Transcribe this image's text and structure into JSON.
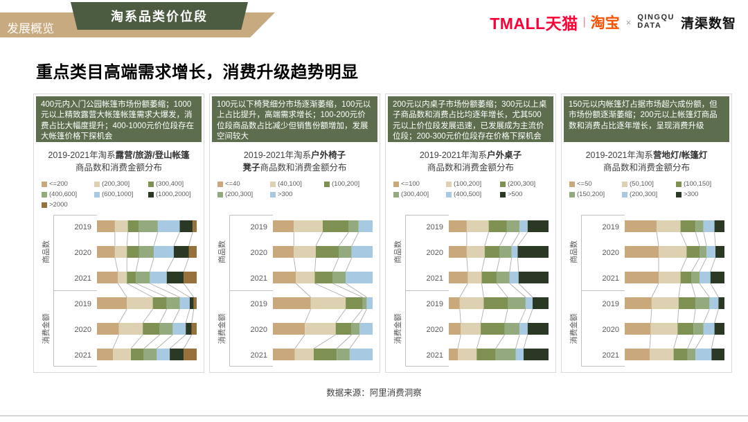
{
  "header": {
    "tab_label": "发展概览",
    "banner_title": "淘系品类价位段",
    "logos": {
      "tmall": "TMALL天猫",
      "separator_bar": "|",
      "taobao": "淘宝",
      "cross": "×",
      "qingqu_line1": "QINGQU",
      "qingqu_line2": "DATA",
      "qingqu_name": "清渠数智"
    }
  },
  "title": "重点类目高端需求增长，消费升级趋势明显",
  "footer": {
    "source": "数据来源：阿里消费洞察"
  },
  "colors": {
    "banner_tan": "#c7aa80",
    "banner_green": "#4c5c41",
    "insight_bg": "#5c6e4e",
    "axis_line": "#bfbfbf",
    "connector": "#adadad",
    "label_text": "#595959"
  },
  "chart_data": [
    {
      "type": "bar",
      "stacked_percent": true,
      "orientation": "horizontal",
      "category": "露营/旅游/登山帐篷",
      "insight": "400元内入门公园帐篷市场份额萎缩；1000元以上精致露营大帐篷帐篷需求大爆发，消费占比大幅度提升；400-1000元价位段存在大帐篷价格下探机会",
      "title_line1_prefix": "2019-2021年淘系",
      "title_line1_bold": "露营/旅游/登山帐篷",
      "title_line2_bold": "",
      "title_line2": "商品数和消费金额分布",
      "legend": [
        "<=200",
        "(200,300]",
        "(300,400]",
        "(400,600]",
        "(600,1000]",
        "(1000,2000]",
        ">2000"
      ],
      "colors": [
        "#c9a87b",
        "#ddd1b2",
        "#7e9152",
        "#93a97e",
        "#a7cae2",
        "#2a3824",
        "#97713b"
      ],
      "groups": [
        "商品数",
        "消费金额"
      ],
      "years": [
        "2019",
        "2020",
        "2021"
      ],
      "rows": [
        {
          "group": "商品数",
          "year": "2019",
          "values": [
            18,
            13,
            11,
            19,
            22,
            13,
            4
          ]
        },
        {
          "group": "商品数",
          "year": "2020",
          "values": [
            18,
            12,
            12,
            15,
            20,
            15,
            8
          ]
        },
        {
          "group": "商品数",
          "year": "2021",
          "values": [
            21,
            9,
            9,
            14,
            17,
            17,
            13
          ]
        },
        {
          "group": "消费金额",
          "year": "2019",
          "values": [
            30,
            26,
            14,
            13,
            10,
            4,
            3
          ]
        },
        {
          "group": "消费金额",
          "year": "2020",
          "values": [
            22,
            24,
            17,
            13,
            13,
            6,
            5
          ]
        },
        {
          "group": "消费金额",
          "year": "2021",
          "values": [
            16,
            18,
            13,
            13,
            13,
            14,
            13
          ]
        }
      ]
    },
    {
      "type": "bar",
      "stacked_percent": true,
      "orientation": "horizontal",
      "category": "户外椅子凳子",
      "insight": "100元以下椅凳细分市场逐渐萎缩，100元以上占比提升，高端需求增长；100-200元价位段商品数占比减少但销售份额增加，发展空间较大",
      "title_line1_prefix": "2019-2021年淘系",
      "title_line1_bold": "户外椅子",
      "title_line2_bold": "凳子",
      "title_line2": "商品数和消费金额分布",
      "legend": [
        "<=40",
        "(40,100]",
        "(100,200]",
        "(200,300]",
        ">300"
      ],
      "colors": [
        "#c9a87b",
        "#ddd1b2",
        "#7e9152",
        "#93a97e",
        "#a7cae2"
      ],
      "groups": [
        "商品数",
        "消费金额"
      ],
      "years": [
        "2019",
        "2020",
        "2021"
      ],
      "rows": [
        {
          "group": "商品数",
          "year": "2019",
          "values": [
            21,
            29,
            26,
            10,
            14
          ]
        },
        {
          "group": "商品数",
          "year": "2020",
          "values": [
            21,
            22,
            23,
            13,
            21
          ]
        },
        {
          "group": "商品数",
          "year": "2021",
          "values": [
            23,
            19,
            18,
            13,
            27
          ]
        },
        {
          "group": "消费金额",
          "year": "2019",
          "values": [
            38,
            35,
            17,
            4,
            6
          ]
        },
        {
          "group": "消费金额",
          "year": "2020",
          "values": [
            32,
            31,
            16,
            8,
            13
          ]
        },
        {
          "group": "消费金额",
          "year": "2021",
          "values": [
            22,
            19,
            23,
            13,
            23
          ]
        }
      ]
    },
    {
      "type": "bar",
      "stacked_percent": true,
      "orientation": "horizontal",
      "category": "户外桌子",
      "insight": "200元以内桌子市场份额萎缩；300元以上桌子商品数和消费占比均逐年增长，尤其500元以上价位段发展迅速，已发展成为主流价位段；200-300元价位段存在价格下探机会",
      "title_line1_prefix": "2019-2021年淘系",
      "title_line1_bold": "户外桌子",
      "title_line2_bold": "",
      "title_line2": "商品数和消费金额分布",
      "legend": [
        "<=100",
        "(100,200]",
        "(200,300]",
        "(300,400]",
        "(400,500]",
        ">500"
      ],
      "colors": [
        "#c9a87b",
        "#ddd1b2",
        "#7e9152",
        "#93a97e",
        "#a7cae2",
        "#2a3824"
      ],
      "groups": [
        "商品数",
        "消费金额"
      ],
      "years": [
        "2019",
        "2020",
        "2021"
      ],
      "rows": [
        {
          "group": "商品数",
          "year": "2019",
          "values": [
            18,
            22,
            18,
            13,
            8,
            21
          ]
        },
        {
          "group": "商品数",
          "year": "2020",
          "values": [
            18,
            18,
            15,
            12,
            6,
            31
          ]
        },
        {
          "group": "商品数",
          "year": "2021",
          "values": [
            19,
            14,
            15,
            13,
            9,
            30
          ]
        },
        {
          "group": "消费金额",
          "year": "2019",
          "values": [
            11,
            24,
            24,
            18,
            7,
            16
          ]
        },
        {
          "group": "消费金额",
          "year": "2020",
          "values": [
            12,
            20,
            24,
            15,
            8,
            21
          ]
        },
        {
          "group": "消费金额",
          "year": "2021",
          "values": [
            9,
            19,
            19,
            20,
            8,
            25
          ]
        }
      ]
    },
    {
      "type": "bar",
      "stacked_percent": true,
      "orientation": "horizontal",
      "category": "营地灯/帐篷灯",
      "insight": "150元以内帐篷灯占据市场超六成份额，但市场份额逐渐萎缩；200元以上帐篷灯商品数和消费占比逐年增长，呈现消费升级",
      "title_line1_prefix": "2019-2021年淘系",
      "title_line1_bold": "营地灯/帐篷灯",
      "title_line2_bold": "",
      "title_line2": "商品数和消费金额分布",
      "legend": [
        "<=50",
        "(50,100]",
        "(100,150]",
        "(150,200]",
        "(200,300]",
        ">300"
      ],
      "colors": [
        "#c9a87b",
        "#ddd1b2",
        "#7e9152",
        "#93a97e",
        "#a7cae2",
        "#2a3824"
      ],
      "groups": [
        "商品数",
        "消费金额"
      ],
      "years": [
        "2019",
        "2020",
        "2021"
      ],
      "rows": [
        {
          "group": "商品数",
          "year": "2019",
          "values": [
            32,
            24,
            15,
            8,
            11,
            10
          ]
        },
        {
          "group": "商品数",
          "year": "2020",
          "values": [
            34,
            28,
            13,
            7,
            9,
            9
          ]
        },
        {
          "group": "商品数",
          "year": "2021",
          "values": [
            34,
            22,
            11,
            8,
            11,
            14
          ]
        },
        {
          "group": "消费金额",
          "year": "2019",
          "values": [
            27,
            27,
            17,
            14,
            9,
            6
          ]
        },
        {
          "group": "消费金额",
          "year": "2020",
          "values": [
            26,
            27,
            16,
            10,
            11,
            10
          ]
        },
        {
          "group": "消费金额",
          "year": "2021",
          "values": [
            25,
            24,
            14,
            8,
            16,
            13
          ]
        }
      ]
    }
  ]
}
